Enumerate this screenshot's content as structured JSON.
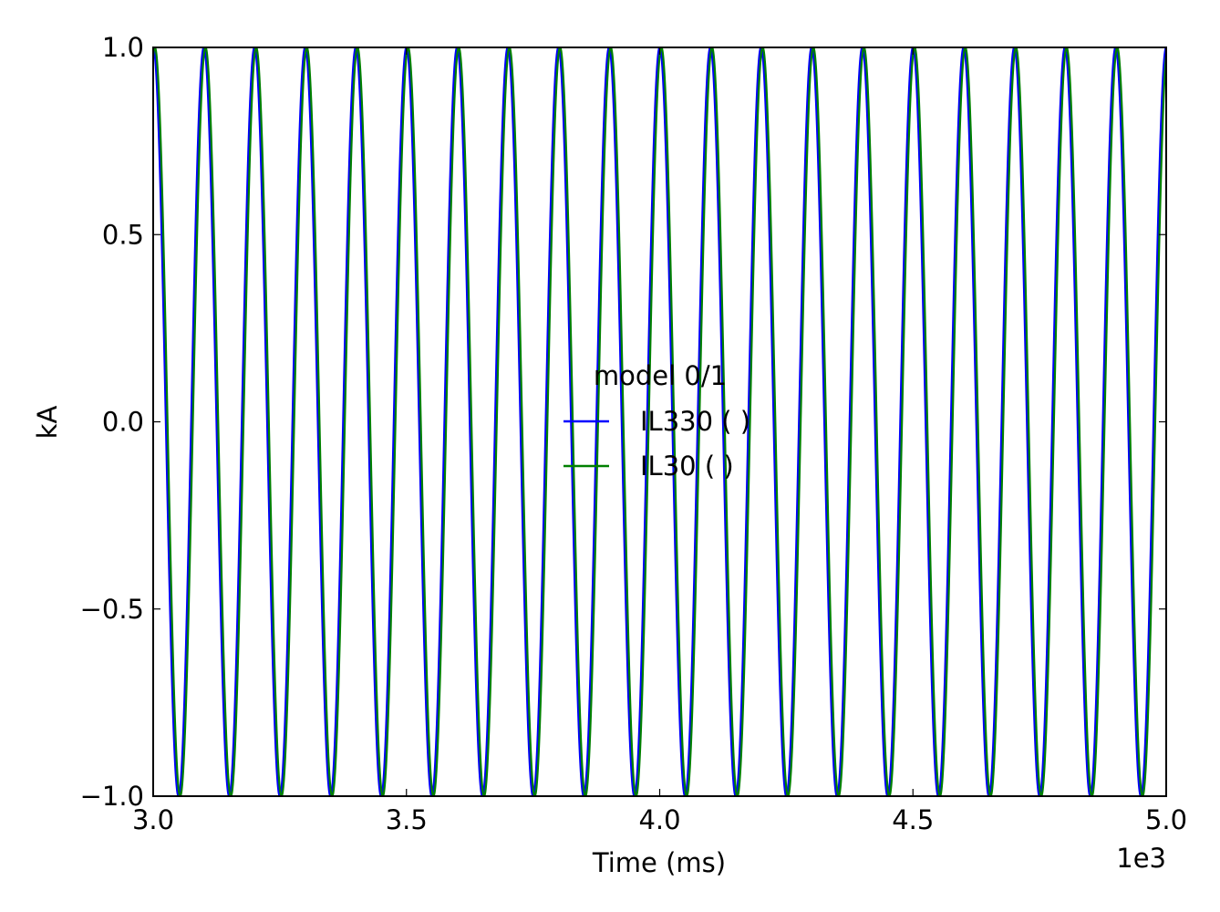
{
  "chart_data": {
    "type": "line",
    "xlabel": "Time (ms)",
    "ylabel": "kA",
    "x_offset_text": "1e3",
    "xlim": [
      3.0,
      5.0
    ],
    "ylim": [
      -1.0,
      1.0
    ],
    "x_ticks": [
      3.0,
      3.5,
      4.0,
      4.5,
      5.0
    ],
    "x_tick_labels": [
      "3.0",
      "3.5",
      "4.0",
      "4.5",
      "5.0"
    ],
    "y_ticks": [
      -1.0,
      -0.5,
      0.0,
      0.5,
      1.0
    ],
    "y_tick_labels": [
      "−1.0",
      "−0.5",
      "0.0",
      "0.5",
      "1.0"
    ],
    "grid": false,
    "legend": {
      "title": "model 0/1",
      "placement": "center"
    },
    "series": [
      {
        "name": "IL330 ( )",
        "color": "#0000ff",
        "waveform": "cosine",
        "amplitude": 1.0,
        "frequency_hz": 10.0,
        "peak_times": [
          3.0,
          3.1,
          3.2,
          3.3,
          3.4,
          3.5,
          3.6,
          3.7,
          3.8,
          3.9,
          4.0,
          4.1,
          4.2,
          4.3,
          4.4,
          4.5,
          4.6,
          4.7,
          4.8,
          4.9,
          5.0
        ]
      },
      {
        "name": "IL30 ( )",
        "color": "#008000",
        "waveform": "cosine",
        "amplitude": 1.0,
        "frequency_hz": 10.0,
        "peak_times": [
          3.0033,
          3.1033,
          3.2033,
          3.3033,
          3.4033,
          3.5033,
          3.6033,
          3.7033,
          3.8033,
          3.9033,
          4.0033,
          4.1033,
          4.2033,
          4.3033,
          4.4033,
          4.5033,
          4.6033,
          4.7033,
          4.8033,
          4.9033
        ]
      }
    ]
  }
}
